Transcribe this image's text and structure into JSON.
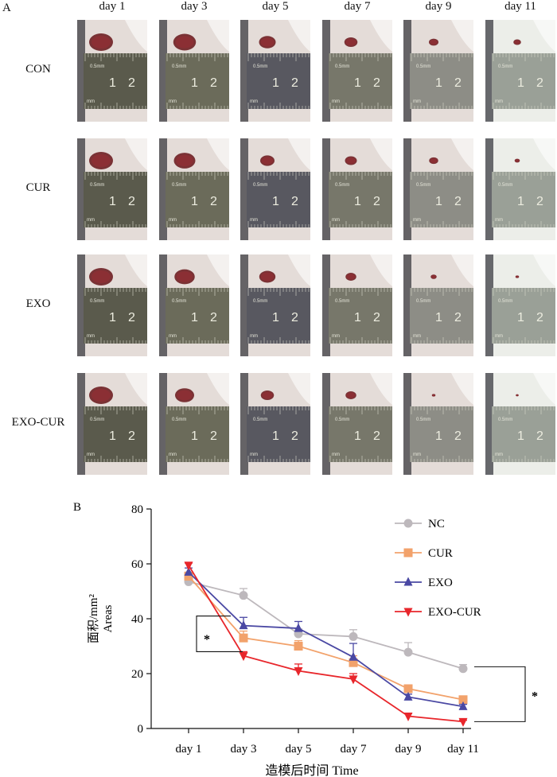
{
  "panel_a": {
    "label": "A",
    "columns": [
      "day 1",
      "day 3",
      "day 5",
      "day 7",
      "day 9",
      "day 11"
    ],
    "rows": [
      "CON",
      "CUR",
      "EXO",
      "EXO-CUR"
    ],
    "wound_sizes": [
      [
        1.0,
        0.95,
        0.7,
        0.55,
        0.4,
        0.32
      ],
      [
        1.0,
        0.9,
        0.6,
        0.5,
        0.38,
        0.22
      ],
      [
        1.0,
        0.85,
        0.68,
        0.45,
        0.25,
        0.15
      ],
      [
        1.0,
        0.8,
        0.55,
        0.45,
        0.15,
        0.12
      ]
    ],
    "ruler": {
      "small": "0.5mm",
      "unit": "mm",
      "marks": [
        "1",
        "2"
      ]
    }
  },
  "chart_data": {
    "type": "line",
    "panel_label": "B",
    "categories": [
      "day 1",
      "day 3",
      "day 5",
      "day 7",
      "day 9",
      "day 11"
    ],
    "series": [
      {
        "name": "NC",
        "values": [
          53.5,
          48.5,
          34.5,
          33.5,
          27.8,
          21.8
        ],
        "errors": [
          1.5,
          2.5,
          1.8,
          2.5,
          3.5,
          1.5
        ],
        "color": "#bdb8bc",
        "marker": "circle"
      },
      {
        "name": "CUR",
        "values": [
          55.5,
          33.0,
          30.0,
          24.0,
          14.5,
          10.5
        ],
        "errors": [
          1.5,
          2.5,
          2.0,
          2.5,
          1.0,
          1.0
        ],
        "color": "#f2a26b",
        "marker": "square"
      },
      {
        "name": "EXO",
        "values": [
          57.0,
          37.5,
          36.5,
          26.0,
          11.5,
          8.0
        ],
        "errors": [
          1.5,
          3.0,
          2.5,
          5.0,
          1.0,
          0.8
        ],
        "color": "#4a48a3",
        "marker": "triangle-up"
      },
      {
        "name": "EXO-CUR",
        "values": [
          59.5,
          26.5,
          21.0,
          18.0,
          4.5,
          2.5
        ],
        "errors": [
          0.8,
          1.5,
          2.5,
          2.0,
          1.0,
          0.5
        ],
        "color": "#e8262b",
        "marker": "triangle-down"
      }
    ],
    "ylabel_cn": "面积/mm²",
    "ylabel_en": "Areas",
    "xlabel": "造模后时间 Time",
    "ylim": [
      0,
      80
    ],
    "yticks": [
      0,
      20,
      40,
      60,
      80
    ],
    "significance": [
      "*",
      "*"
    ],
    "grid": false,
    "legend_position": "top-right"
  }
}
